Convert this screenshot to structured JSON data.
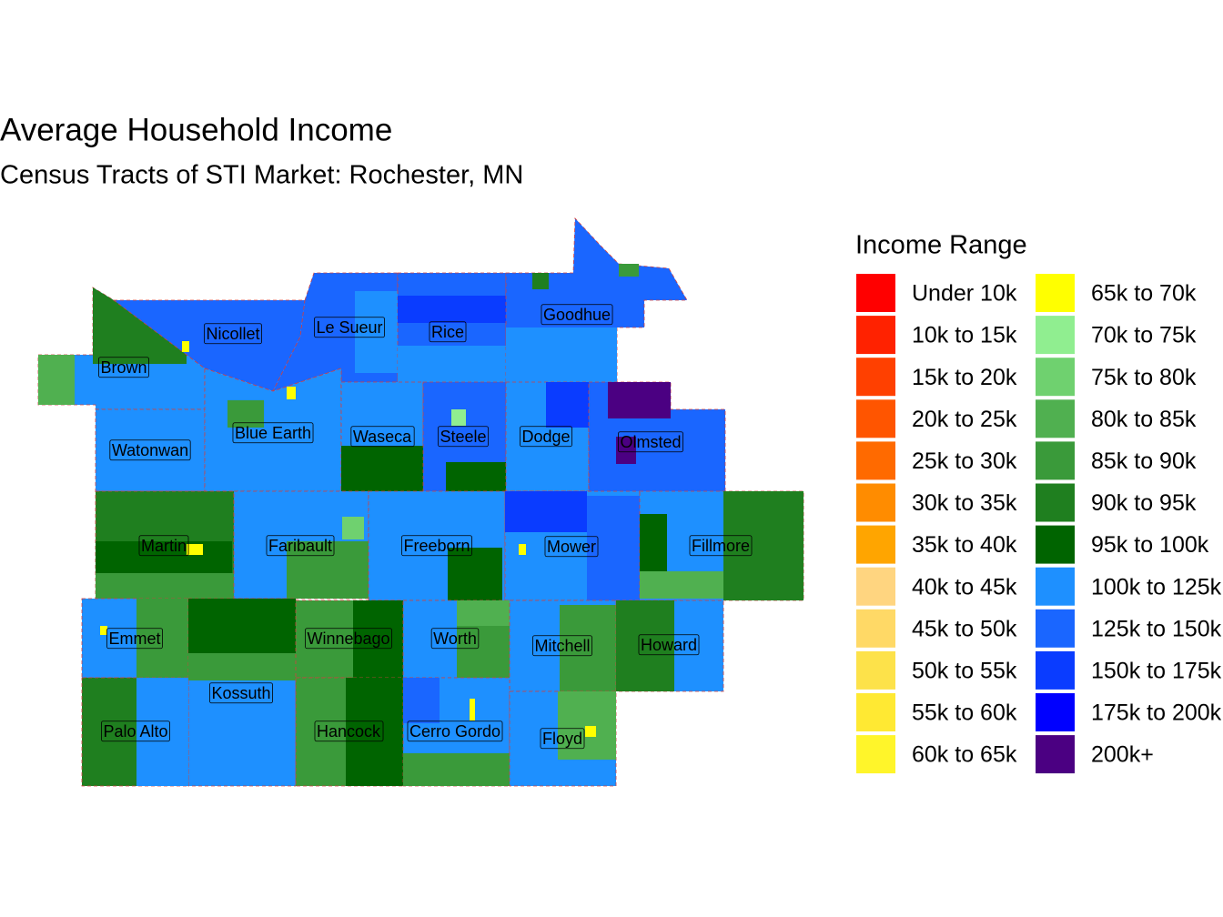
{
  "header": {
    "title": "Average Household Income",
    "subtitle": "Census Tracts of STI Market: Rochester, MN"
  },
  "legend": {
    "title": "Income Range",
    "items": [
      {
        "label": "Under 10k",
        "color": "#FF0000"
      },
      {
        "label": "10k to 15k",
        "color": "#FF2200"
      },
      {
        "label": "15k to 20k",
        "color": "#FF4000"
      },
      {
        "label": "20k to 25k",
        "color": "#FF5500"
      },
      {
        "label": "25k to 30k",
        "color": "#FF6A00"
      },
      {
        "label": "30k to 35k",
        "color": "#FF8C00"
      },
      {
        "label": "35k to 40k",
        "color": "#FFA500"
      },
      {
        "label": "40k to 45k",
        "color": "#FFD580"
      },
      {
        "label": "45k to 50k",
        "color": "#FFD966"
      },
      {
        "label": "50k to 55k",
        "color": "#FDE24A"
      },
      {
        "label": "55k to 60k",
        "color": "#FFE933"
      },
      {
        "label": "60k to 65k",
        "color": "#FFF52A"
      },
      {
        "label": "65k to 70k",
        "color": "#FFFF00"
      },
      {
        "label": "70k to 75k",
        "color": "#90EE90"
      },
      {
        "label": "75k to 80k",
        "color": "#6FD16F"
      },
      {
        "label": "80k to 85k",
        "color": "#50B050"
      },
      {
        "label": "85k to 90k",
        "color": "#3A9A3A"
      },
      {
        "label": "90k to 95k",
        "color": "#1F7F1F"
      },
      {
        "label": "95k to 100k",
        "color": "#006400"
      },
      {
        "label": "100k to 125k",
        "color": "#1E90FF"
      },
      {
        "label": "125k to 150k",
        "color": "#1A66FF"
      },
      {
        "label": "150k to 175k",
        "color": "#0A3CFF"
      },
      {
        "label": "175k to 200k",
        "color": "#0000FF"
      },
      {
        "label": "200k+",
        "color": "#4B0082"
      }
    ]
  },
  "counties": [
    {
      "label": "Brown"
    },
    {
      "label": "Nicollet"
    },
    {
      "label": "Le Sueur"
    },
    {
      "label": "Rice"
    },
    {
      "label": "Goodhue"
    },
    {
      "label": "Watonwan"
    },
    {
      "label": "Blue Earth"
    },
    {
      "label": "Waseca"
    },
    {
      "label": "Steele"
    },
    {
      "label": "Dodge"
    },
    {
      "label": "Olmsted"
    },
    {
      "label": "Martin"
    },
    {
      "label": "Faribault"
    },
    {
      "label": "Freeborn"
    },
    {
      "label": "Mower"
    },
    {
      "label": "Fillmore"
    },
    {
      "label": "Emmet"
    },
    {
      "label": "Winnebago"
    },
    {
      "label": "Worth"
    },
    {
      "label": "Mitchell"
    },
    {
      "label": "Howard"
    },
    {
      "label": "Kossuth"
    },
    {
      "label": "Palo Alto"
    },
    {
      "label": "Hancock"
    },
    {
      "label": "Cerro Gordo"
    },
    {
      "label": "Floyd"
    }
  ]
}
